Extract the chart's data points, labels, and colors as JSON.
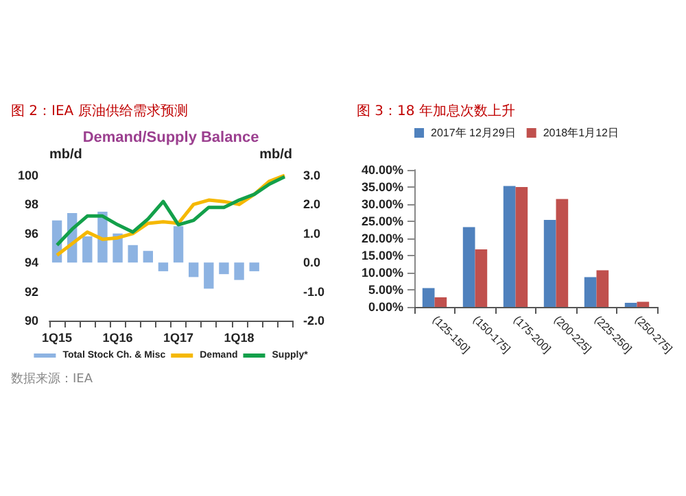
{
  "chart_data": [
    {
      "type": "line",
      "title": "图 2：IEA 原油供给需求预测",
      "subtitle": "Demand/Supply Balance",
      "ylabel": "mb/d",
      "y2label": "mb/d",
      "annotations": [
        "数据来源：IEA"
      ],
      "categories": [
        "1Q15",
        null,
        null,
        null,
        "1Q16",
        null,
        null,
        null,
        "1Q17",
        null,
        null,
        null,
        "1Q18",
        null,
        null,
        null
      ],
      "series": [
        {
          "name": "Total Stock Ch. & Misc",
          "type": "bar",
          "axis": "y2",
          "color": "#8db3e2",
          "values": [
            1.45,
            1.7,
            0.9,
            1.75,
            1.0,
            0.6,
            0.4,
            -0.3,
            1.25,
            -0.5,
            -0.9,
            -0.4,
            -0.6,
            -0.3,
            null,
            null
          ]
        },
        {
          "name": "Demand",
          "color": "#f5b800",
          "values": [
            94.5,
            95.3,
            96.1,
            95.6,
            95.7,
            96.0,
            96.7,
            96.8,
            96.7,
            98.0,
            98.3,
            98.2,
            98.0,
            98.7,
            99.6,
            100.0
          ]
        },
        {
          "name": "Supply*",
          "color": "#13a04a",
          "values": [
            95.2,
            96.3,
            97.2,
            97.2,
            96.6,
            96.1,
            97.0,
            98.2,
            96.6,
            96.9,
            97.8,
            97.8,
            98.3,
            98.7,
            99.4,
            99.9
          ]
        }
      ],
      "ylim": [
        90,
        100
      ],
      "yticks": [
        90,
        92,
        94,
        96,
        98,
        100
      ],
      "y2lim": [
        -2,
        3
      ],
      "y2ticks": [
        {
          "value": -2,
          "label": "-2.0"
        },
        {
          "value": -1,
          "label": "-1.0"
        },
        {
          "value": 0,
          "label": "0.0"
        },
        {
          "value": 1,
          "label": "1.0"
        },
        {
          "value": 2,
          "label": "2.0"
        },
        {
          "value": 3,
          "label": "3.0"
        }
      ],
      "legend": "bottom",
      "grid": false,
      "marker": "none"
    },
    {
      "type": "bar",
      "title": "图 3：18 年加息次数上升",
      "categories": [
        "(125-150]",
        "(150-175]",
        "(175-200]",
        "(200-225]",
        "(225-250]",
        "(250-275]"
      ],
      "series": [
        {
          "name": "2017年 12月29日",
          "color": "#4f81bd",
          "values": [
            5.5,
            23.3,
            35.3,
            25.4,
            8.7,
            1.2
          ]
        },
        {
          "name": "2018年1月12日",
          "color": "#c0504d",
          "values": [
            2.8,
            16.8,
            35.0,
            31.5,
            10.7,
            1.5
          ]
        }
      ],
      "ylim": [
        0,
        40
      ],
      "yticks": [
        {
          "value": 0,
          "label": "0.00%"
        },
        {
          "value": 5,
          "label": "5.00%"
        },
        {
          "value": 10,
          "label": "10.00%"
        },
        {
          "value": 15,
          "label": "15.00%"
        },
        {
          "value": 20,
          "label": "20.00%"
        },
        {
          "value": 25,
          "label": "25.00%"
        },
        {
          "value": 30,
          "label": "30.00%"
        },
        {
          "value": 35,
          "label": "35.00%"
        },
        {
          "value": 40,
          "label": "40.00%"
        }
      ],
      "legend": "top",
      "grid": false
    }
  ]
}
